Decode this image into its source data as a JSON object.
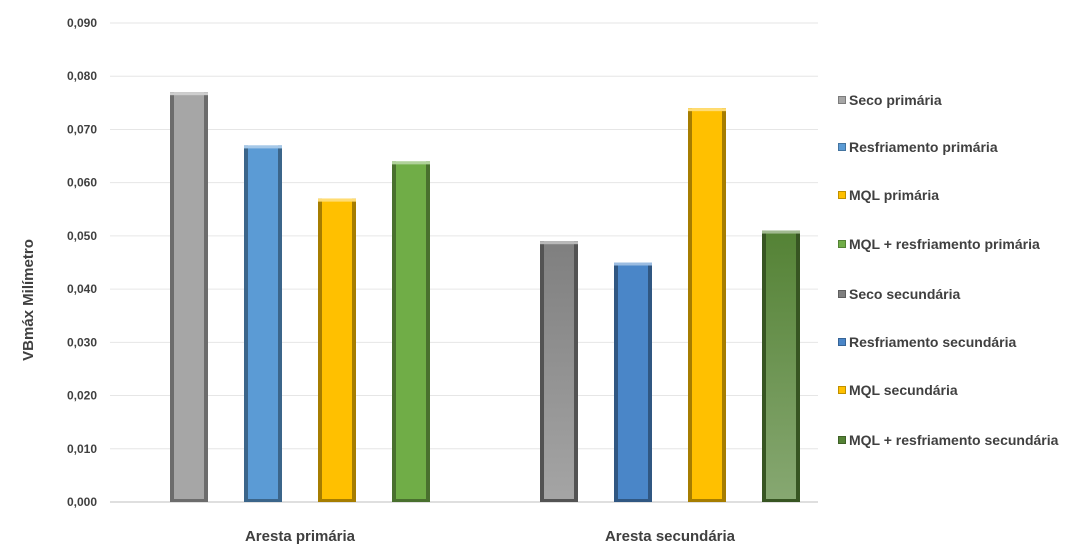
{
  "chart_data": {
    "type": "bar",
    "categories": [
      "Aresta primária",
      "Aresta secundária"
    ],
    "ylabel": "VBmáx  Milímetro",
    "ylim": [
      0,
      0.09
    ],
    "yticks": [
      "0,000",
      "0,010",
      "0,020",
      "0,030",
      "0,040",
      "0,050",
      "0,060",
      "0,070",
      "0,080",
      "0,090"
    ],
    "grid": true,
    "legend_position": "right",
    "series": [
      {
        "name": "Seco primária",
        "values": [
          0.077,
          null
        ],
        "color": "#a6a6a6"
      },
      {
        "name": "Resfriamento primária",
        "values": [
          0.067,
          null
        ],
        "color": "#5b9bd5"
      },
      {
        "name": "MQL primária",
        "values": [
          0.057,
          null
        ],
        "color": "#ffc000"
      },
      {
        "name": "MQL + resfriamento primária",
        "values": [
          0.064,
          null
        ],
        "color": "#70ad47"
      },
      {
        "name": "Seco secundária",
        "values": [
          null,
          0.049
        ],
        "color": "#7f7f7f"
      },
      {
        "name": "Resfriamento secundária",
        "values": [
          null,
          0.045
        ],
        "color": "#4a86c8"
      },
      {
        "name": "MQL secundária",
        "values": [
          null,
          0.074
        ],
        "color": "#ffc000"
      },
      {
        "name": "MQL + resfriamento secundária",
        "values": [
          null,
          0.051
        ],
        "color": "#548235"
      }
    ]
  }
}
